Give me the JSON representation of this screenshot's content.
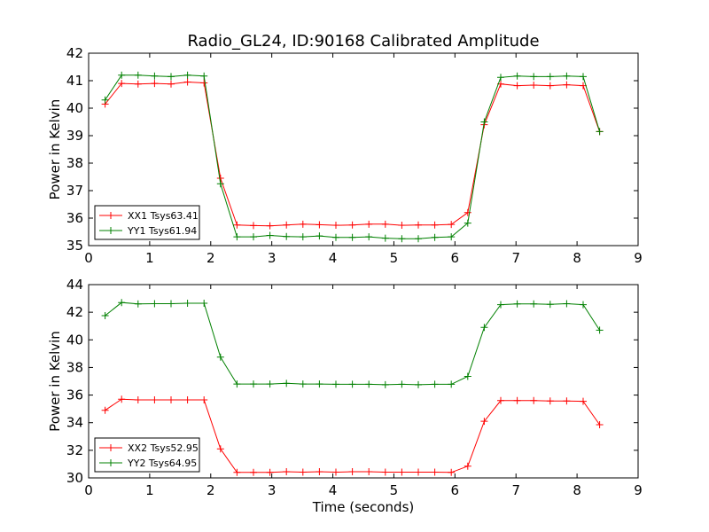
{
  "chart_data": [
    {
      "type": "line",
      "title": "Radio_GL24, ID:90168 Calibrated Amplitude",
      "xlabel": "",
      "ylabel": "Power in Kelvin",
      "xlim": [
        0,
        9
      ],
      "ylim": [
        35,
        42
      ],
      "xticks": [
        "0",
        "1",
        "2",
        "3",
        "4",
        "5",
        "6",
        "7",
        "8",
        "9"
      ],
      "yticks": [
        "35",
        "36",
        "37",
        "38",
        "39",
        "40",
        "41",
        "42"
      ],
      "legend_position": "lower-left",
      "grid": false,
      "x": [
        0.27,
        0.54,
        0.81,
        1.08,
        1.35,
        1.62,
        1.89,
        2.16,
        2.43,
        2.7,
        2.97,
        3.24,
        3.51,
        3.78,
        4.05,
        4.32,
        4.59,
        4.86,
        5.13,
        5.4,
        5.67,
        5.94,
        6.21,
        6.48,
        6.75,
        7.02,
        7.29,
        7.56,
        7.83,
        8.1,
        8.37
      ],
      "series": [
        {
          "name": "XX1 Tsys63.41",
          "color": "#ff0000",
          "values": [
            40.15,
            40.9,
            40.88,
            40.9,
            40.88,
            40.95,
            40.92,
            37.45,
            35.75,
            35.73,
            35.72,
            35.75,
            35.78,
            35.76,
            35.74,
            35.75,
            35.78,
            35.78,
            35.74,
            35.75,
            35.75,
            35.77,
            36.2,
            39.4,
            40.88,
            40.82,
            40.84,
            40.82,
            40.85,
            40.82,
            39.15
          ]
        },
        {
          "name": "YY1 Tsys61.94",
          "color": "#008000",
          "values": [
            40.3,
            41.2,
            41.2,
            41.17,
            41.15,
            41.2,
            41.17,
            37.25,
            35.32,
            35.32,
            35.37,
            35.33,
            35.32,
            35.35,
            35.3,
            35.3,
            35.32,
            35.27,
            35.25,
            35.25,
            35.3,
            35.32,
            35.82,
            39.5,
            41.12,
            41.17,
            41.15,
            41.15,
            41.17,
            41.15,
            39.15
          ]
        }
      ]
    },
    {
      "type": "line",
      "title": "",
      "xlabel": "Time (seconds)",
      "ylabel": "Power in Kelvin",
      "xlim": [
        0,
        9
      ],
      "ylim": [
        30,
        44
      ],
      "xticks": [
        "0",
        "1",
        "2",
        "3",
        "4",
        "5",
        "6",
        "7",
        "8",
        "9"
      ],
      "yticks": [
        "30",
        "32",
        "34",
        "36",
        "38",
        "40",
        "42",
        "44"
      ],
      "legend_position": "lower-left",
      "grid": false,
      "x": [
        0.27,
        0.54,
        0.81,
        1.08,
        1.35,
        1.62,
        1.89,
        2.16,
        2.43,
        2.7,
        2.97,
        3.24,
        3.51,
        3.78,
        4.05,
        4.32,
        4.59,
        4.86,
        5.13,
        5.4,
        5.67,
        5.94,
        6.21,
        6.48,
        6.75,
        7.02,
        7.29,
        7.56,
        7.83,
        8.1,
        8.37
      ],
      "series": [
        {
          "name": "XX2 Tsys52.95",
          "color": "#ff0000",
          "values": [
            34.9,
            35.7,
            35.65,
            35.65,
            35.65,
            35.65,
            35.65,
            32.1,
            30.4,
            30.4,
            30.4,
            30.45,
            30.42,
            30.45,
            30.42,
            30.45,
            30.45,
            30.42,
            30.42,
            30.42,
            30.42,
            30.4,
            30.85,
            34.1,
            35.6,
            35.6,
            35.6,
            35.57,
            35.57,
            35.55,
            33.85
          ]
        },
        {
          "name": "YY2 Tsys64.95",
          "color": "#008000",
          "values": [
            41.75,
            42.7,
            42.6,
            42.62,
            42.62,
            42.65,
            42.65,
            38.75,
            36.8,
            36.8,
            36.8,
            36.85,
            36.8,
            36.8,
            36.78,
            36.78,
            36.78,
            36.75,
            36.78,
            36.75,
            36.78,
            36.78,
            37.35,
            40.9,
            42.55,
            42.6,
            42.6,
            42.57,
            42.62,
            42.55,
            40.7
          ]
        }
      ]
    }
  ]
}
